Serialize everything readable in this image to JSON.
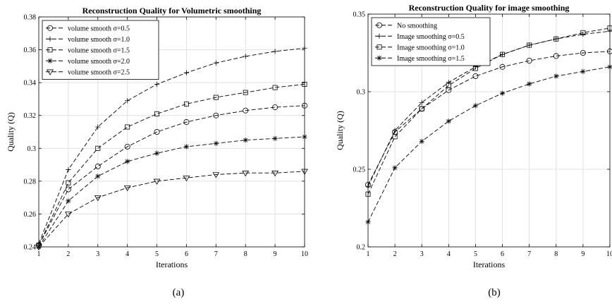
{
  "captions": [
    "(a)",
    "(b)"
  ],
  "chart_data": [
    {
      "type": "line",
      "title": "Reconstruction Quality for Volumetric smoothing",
      "xlabel": "Iterations",
      "ylabel": "Quality (Q)",
      "xlim": [
        1,
        10
      ],
      "ylim": [
        0.24,
        0.38
      ],
      "xticks": [
        1,
        2,
        3,
        4,
        5,
        6,
        7,
        8,
        9,
        10
      ],
      "yticks": [
        0.24,
        0.26,
        0.28,
        0.3,
        0.32,
        0.34,
        0.36,
        0.38
      ],
      "ytick_labels": [
        "0.24",
        "0.26",
        "0.28",
        "0.3",
        "0.32",
        "0.34",
        "0.36",
        "0.38"
      ],
      "grid": true,
      "legend_position": "top-left",
      "x": [
        1,
        2,
        3,
        4,
        5,
        6,
        7,
        8,
        9,
        10
      ],
      "series": [
        {
          "name": "volume smooth σ=0.5",
          "marker": "circle",
          "values": [
            0.241,
            0.275,
            0.289,
            0.301,
            0.31,
            0.316,
            0.32,
            0.323,
            0.325,
            0.326
          ]
        },
        {
          "name": "volume smooth σ=1.0",
          "marker": "plus",
          "values": [
            0.242,
            0.287,
            0.313,
            0.329,
            0.339,
            0.346,
            0.352,
            0.356,
            0.359,
            0.361
          ]
        },
        {
          "name": "volume smooth σ=1.5",
          "marker": "square",
          "values": [
            0.241,
            0.279,
            0.3,
            0.313,
            0.321,
            0.327,
            0.331,
            0.334,
            0.337,
            0.339
          ]
        },
        {
          "name": "volume smooth σ=2.0",
          "marker": "asterisk",
          "values": [
            0.24,
            0.268,
            0.283,
            0.292,
            0.297,
            0.301,
            0.303,
            0.305,
            0.306,
            0.307
          ]
        },
        {
          "name": "volume smooth σ=2.5",
          "marker": "triangle-down",
          "values": [
            0.24,
            0.26,
            0.27,
            0.276,
            0.28,
            0.282,
            0.284,
            0.285,
            0.285,
            0.286
          ]
        }
      ]
    },
    {
      "type": "line",
      "title": "Reconstruction Quality for image smoothing",
      "xlabel": "Iterations",
      "ylabel": "Quality (Q)",
      "xlim": [
        1,
        10
      ],
      "ylim": [
        0.2,
        0.35
      ],
      "xticks": [
        1,
        2,
        3,
        4,
        5,
        6,
        7,
        8,
        9,
        10
      ],
      "yticks": [
        0.2,
        0.25,
        0.3,
        0.35
      ],
      "ytick_labels": [
        "0.2",
        "0.25",
        "0.3",
        "0.35"
      ],
      "grid": true,
      "legend_position": "top-left",
      "x": [
        1,
        2,
        3,
        4,
        5,
        6,
        7,
        8,
        9,
        10
      ],
      "series": [
        {
          "name": "No smoothing",
          "marker": "circle",
          "values": [
            0.24,
            0.274,
            0.289,
            0.301,
            0.31,
            0.316,
            0.32,
            0.323,
            0.325,
            0.326
          ]
        },
        {
          "name": "Image smoothing σ=0.5",
          "marker": "plus",
          "values": [
            0.239,
            0.275,
            0.293,
            0.306,
            0.316,
            0.324,
            0.33,
            0.334,
            0.337,
            0.339
          ]
        },
        {
          "name": "Image smoothing σ=1.0",
          "marker": "square",
          "values": [
            0.234,
            0.271,
            0.289,
            0.304,
            0.315,
            0.324,
            0.33,
            0.334,
            0.338,
            0.341
          ]
        },
        {
          "name": "Image smoothing σ=1.5",
          "marker": "asterisk",
          "values": [
            0.216,
            0.251,
            0.268,
            0.281,
            0.291,
            0.299,
            0.305,
            0.31,
            0.313,
            0.316
          ]
        }
      ]
    }
  ]
}
